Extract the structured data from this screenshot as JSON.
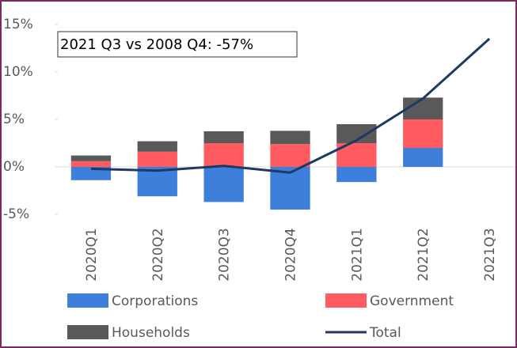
{
  "chart_data": {
    "type": "bar",
    "annotation": "2021 Q3 vs 2008 Q4: -57%",
    "categories": [
      "2020Q1",
      "2020Q2",
      "2020Q3",
      "2020Q4",
      "2021Q1",
      "2021Q2",
      "2021Q3"
    ],
    "series": [
      {
        "name": "Corporations",
        "color": "#3f7fdc",
        "values": [
          -1.4,
          -3.1,
          -3.7,
          -4.5,
          -1.6,
          2.0,
          null
        ]
      },
      {
        "name": "Government",
        "color": "#ff5b60",
        "values": [
          0.6,
          1.6,
          2.5,
          2.4,
          2.5,
          3.0,
          null
        ]
      },
      {
        "name": "Households",
        "color": "#595959",
        "values": [
          0.6,
          1.1,
          1.25,
          1.4,
          2.0,
          2.3,
          null
        ]
      },
      {
        "name": "Total",
        "type": "line",
        "color": "#1f3864",
        "values": [
          -0.2,
          -0.4,
          0.1,
          -0.6,
          2.8,
          7.2,
          13.5
        ]
      }
    ],
    "ylim": [
      -5,
      15
    ],
    "yticks": [
      {
        "value": -5,
        "label": "-5%"
      },
      {
        "value": 0,
        "label": "0%"
      },
      {
        "value": 5,
        "label": "5%"
      },
      {
        "value": 10,
        "label": "10%"
      },
      {
        "value": 15,
        "label": "15%"
      }
    ],
    "stacked": true
  }
}
